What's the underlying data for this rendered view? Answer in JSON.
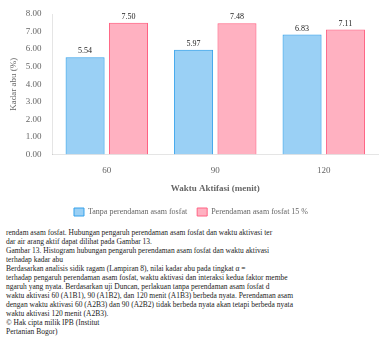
{
  "chart_data": {
    "type": "bar",
    "categories": [
      "60",
      "90",
      "120"
    ],
    "series": [
      {
        "name": "Tanpa perendaman asam fosfat",
        "values": [
          5.54,
          5.97,
          6.83
        ],
        "value_labels": [
          "5.54",
          "5.97",
          "6.83"
        ]
      },
      {
        "name": "Perendaman asam fosfat 15 %",
        "values": [
          7.5,
          7.48,
          7.11
        ],
        "value_labels": [
          "7.50",
          "7.48",
          "7.11"
        ]
      }
    ],
    "xlabel": "Waktu Aktifasi (menit)",
    "ylabel": "Kadar abu (%)",
    "ylim": [
      0.0,
      8.0
    ],
    "yticks": [
      {
        "value": 0.0,
        "label": "0.00"
      },
      {
        "value": 1.0,
        "label": "1.00"
      },
      {
        "value": 2.0,
        "label": "2.00"
      },
      {
        "value": 3.0,
        "label": "3.00"
      },
      {
        "value": 4.0,
        "label": "4.00"
      },
      {
        "value": 5.0,
        "label": "5.00"
      },
      {
        "value": 6.0,
        "label": "6.00"
      },
      {
        "value": 7.0,
        "label": "7.00"
      },
      {
        "value": 8.0,
        "label": "8.00"
      }
    ],
    "data_labels": true,
    "grid": false,
    "legend": "bottom",
    "annotations": [
      "rendam asam fosfat. Hubungan pengaruh perendaman asam fosfat dan waktu aktivasi ter",
      "dar air arang aktif dapat dilihat pada Gambar 13.",
      "Gambar 13. Histogram hubungan pengaruh perendaman asam fosfat dan waktu aktivasi",
      "terhadap kadar abu",
      "Berdasarkan analisis sidik ragam (Lampiran 8), nilai kadar abu pada tingkat α =",
      "terhadap pengaruh perendaman asam fosfat, waktu aktivasi dan interaksi kedua faktor membe",
      "ngaruh yang nyata. Berdasarkan uji Duncan, perlakuan tanpa perendaman asam fosfat d",
      "waktu aktivasi 60 (A1B1), 90 (A1B2), dan 120 menit (A1B3) berbeda nyata. Perendaman asam",
      "dengan waktu aktivasi 60 (A2B3) dan  90 (A2B2) tidak berbeda nyata akan tetapi berbeda nyata",
      "waktu aktivasi 120 menit (A2B3).",
      "© Hak cipta milik IPB (Institut",
      "Pertanian Bogor)"
    ]
  }
}
